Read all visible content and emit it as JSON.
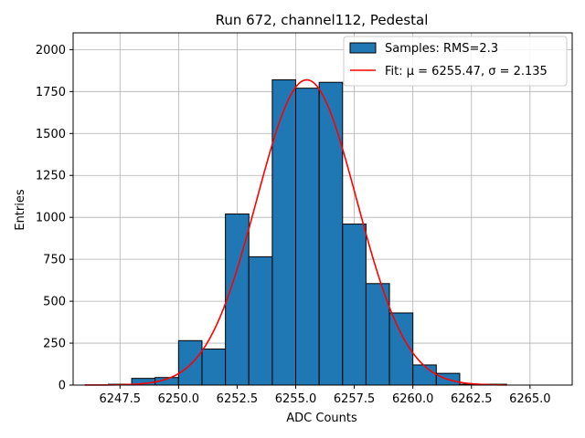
{
  "chart_data": {
    "type": "bar",
    "title": "Run 672, channel112, Pedestal",
    "xlabel": "ADC Counts",
    "ylabel": "Entries",
    "xlim": [
      6245.5,
      6266.8
    ],
    "ylim": [
      0,
      2100
    ],
    "x_ticks": [
      6247.5,
      6250.0,
      6252.5,
      6255.0,
      6257.5,
      6260.0,
      6262.5,
      6265.0
    ],
    "x_tick_labels": [
      "6247.5",
      "6250.0",
      "6252.5",
      "6255.0",
      "6257.5",
      "6260.0",
      "6262.5",
      "6265.0"
    ],
    "y_ticks": [
      0,
      250,
      500,
      750,
      1000,
      1250,
      1500,
      1750,
      2000
    ],
    "y_tick_labels": [
      "0",
      "250",
      "500",
      "750",
      "1000",
      "1250",
      "1500",
      "1750",
      "2000"
    ],
    "grid": true,
    "legend_position": "top-right",
    "bar_color": "#1f77b4",
    "fit_color": "#ff0000",
    "bins": [
      {
        "left": 6247.0,
        "right": 6248.0,
        "value": 5
      },
      {
        "left": 6248.0,
        "right": 6249.0,
        "value": 40
      },
      {
        "left": 6249.0,
        "right": 6250.0,
        "value": 45
      },
      {
        "left": 6250.0,
        "right": 6251.0,
        "value": 265
      },
      {
        "left": 6251.0,
        "right": 6252.0,
        "value": 215
      },
      {
        "left": 6252.0,
        "right": 6253.0,
        "value": 1020
      },
      {
        "left": 6253.0,
        "right": 6254.0,
        "value": 765
      },
      {
        "left": 6254.0,
        "right": 6255.0,
        "value": 1820
      },
      {
        "left": 6255.0,
        "right": 6256.0,
        "value": 1770
      },
      {
        "left": 6256.0,
        "right": 6257.0,
        "value": 1805
      },
      {
        "left": 6257.0,
        "right": 6258.0,
        "value": 960
      },
      {
        "left": 6258.0,
        "right": 6259.0,
        "value": 605
      },
      {
        "left": 6259.0,
        "right": 6260.0,
        "value": 430
      },
      {
        "left": 6260.0,
        "right": 6261.0,
        "value": 120
      },
      {
        "left": 6261.0,
        "right": 6262.0,
        "value": 70
      },
      {
        "left": 6262.0,
        "right": 6263.0,
        "value": 5
      },
      {
        "left": 6263.0,
        "right": 6264.0,
        "value": 5
      }
    ],
    "fit": {
      "mu": 6255.47,
      "sigma": 2.135,
      "amplitude": 1820,
      "x_start": 6246.0,
      "x_end": 6264.0
    },
    "series": [
      {
        "name": "Samples: RMS=2.3",
        "kind": "histogram"
      },
      {
        "name": "Fit: μ = 6255.47, σ = 2.135",
        "kind": "line"
      }
    ]
  }
}
